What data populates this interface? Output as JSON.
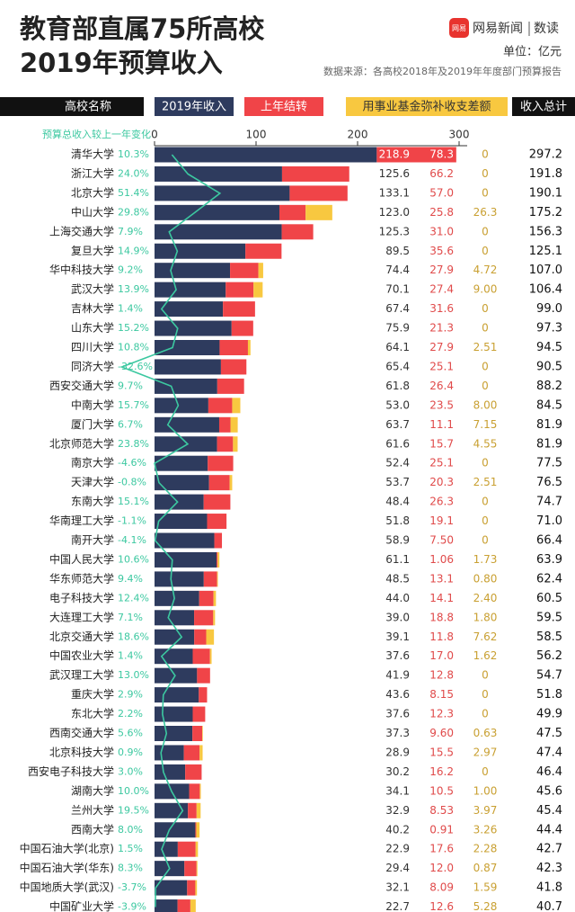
{
  "chart_data": {
    "type": "bar",
    "orientation": "horizontal",
    "stacked": true,
    "title": "教育部直属75所高校",
    "subtitle": "2019年预算收入",
    "logo_text": "网易",
    "brand": "网易新闻",
    "brand_sub": "数读",
    "unit": "单位：亿元",
    "source": "数据来源：各高校2018年及2019年年度部门预算报告",
    "category_label": "高校名称",
    "xlim": [
      0,
      300
    ],
    "xticks": [
      0,
      100,
      200,
      300
    ],
    "categories": [
      "清华大学",
      "浙江大学",
      "北京大学",
      "中山大学",
      "上海交通大学",
      "复旦大学",
      "华中科技大学",
      "武汉大学",
      "吉林大学",
      "山东大学",
      "四川大学",
      "同济大学",
      "西安交通大学",
      "中南大学",
      "厦门大学",
      "北京师范大学",
      "南京大学",
      "天津大学",
      "东南大学",
      "华南理工大学",
      "南开大学",
      "中国人民大学",
      "华东师范大学",
      "电子科技大学",
      "大连理工大学",
      "北京交通大学",
      "中国农业大学",
      "武汉理工大学",
      "重庆大学",
      "东北大学",
      "西南交通大学",
      "北京科技大学",
      "西安电子科技大学",
      "湖南大学",
      "兰州大学",
      "西南大学",
      "中国石油大学(北京)",
      "中国石油大学(华东)",
      "中国地质大学(武汉)",
      "中国矿业大学"
    ],
    "series": [
      {
        "name": "2019年收入",
        "color": "#2e3b5e",
        "text_color": "#333333",
        "values": [
          218.9,
          125.6,
          133.1,
          123.0,
          125.3,
          89.5,
          74.4,
          70.1,
          67.4,
          75.9,
          64.1,
          65.4,
          61.8,
          53.0,
          63.7,
          61.6,
          52.4,
          53.7,
          48.4,
          51.8,
          58.9,
          61.1,
          48.5,
          44.0,
          39.0,
          39.1,
          37.6,
          41.9,
          43.6,
          37.6,
          37.3,
          28.9,
          30.2,
          34.1,
          32.9,
          40.2,
          22.9,
          29.4,
          32.1,
          22.7
        ],
        "value_labels": [
          "218.9",
          "125.6",
          "133.1",
          "123.0",
          "125.3",
          "89.5",
          "74.4",
          "70.1",
          "67.4",
          "75.9",
          "64.1",
          "65.4",
          "61.8",
          "53.0",
          "63.7",
          "61.6",
          "52.4",
          "53.7",
          "48.4",
          "51.8",
          "58.9",
          "61.1",
          "48.5",
          "44.0",
          "39.0",
          "39.1",
          "37.6",
          "41.9",
          "43.6",
          "37.6",
          "37.3",
          "28.9",
          "30.2",
          "34.1",
          "32.9",
          "40.2",
          "22.9",
          "29.4",
          "32.1",
          "22.7"
        ]
      },
      {
        "name": "上年结转",
        "color": "#f04448",
        "text_color": "#e04a4a",
        "values": [
          78.3,
          66.2,
          57.0,
          25.8,
          31.0,
          35.6,
          27.9,
          27.4,
          31.6,
          21.3,
          27.9,
          25.1,
          26.4,
          23.5,
          11.1,
          15.7,
          25.1,
          20.3,
          26.3,
          19.1,
          7.5,
          1.06,
          13.1,
          14.1,
          18.8,
          11.8,
          17.0,
          12.8,
          8.15,
          12.3,
          9.6,
          15.5,
          16.2,
          10.5,
          8.53,
          0.91,
          17.6,
          12.0,
          8.09,
          12.6
        ],
        "value_labels": [
          "78.3",
          "66.2",
          "57.0",
          "25.8",
          "31.0",
          "35.6",
          "27.9",
          "27.4",
          "31.6",
          "21.3",
          "27.9",
          "25.1",
          "26.4",
          "23.5",
          "11.1",
          "15.7",
          "25.1",
          "20.3",
          "26.3",
          "19.1",
          "7.50",
          "1.06",
          "13.1",
          "14.1",
          "18.8",
          "11.8",
          "17.0",
          "12.8",
          "8.15",
          "12.3",
          "9.60",
          "15.5",
          "16.2",
          "10.5",
          "8.53",
          "0.91",
          "17.6",
          "12.0",
          "8.09",
          "12.6"
        ]
      },
      {
        "name": "用事业基金弥补收支差额",
        "color": "#f8c840",
        "text_color": "#c9a032",
        "values": [
          0,
          0,
          0,
          26.3,
          0,
          0,
          4.72,
          9.0,
          0,
          0,
          2.51,
          0,
          0,
          8.0,
          7.15,
          4.55,
          0,
          2.51,
          0,
          0,
          0,
          1.73,
          0.8,
          2.4,
          1.8,
          7.62,
          1.62,
          0,
          0,
          0,
          0.63,
          2.97,
          0,
          1.0,
          3.97,
          3.26,
          2.28,
          0.87,
          1.59,
          5.28
        ],
        "value_labels": [
          "0",
          "0",
          "0",
          "26.3",
          "0",
          "0",
          "4.72",
          "9.00",
          "0",
          "0",
          "2.51",
          "0",
          "0",
          "8.00",
          "7.15",
          "4.55",
          "0",
          "2.51",
          "0",
          "0",
          "0",
          "1.73",
          "0.80",
          "2.40",
          "1.80",
          "7.62",
          "1.62",
          "0",
          "0",
          "0",
          "0.63",
          "2.97",
          "0",
          "1.00",
          "3.97",
          "3.26",
          "2.28",
          "0.87",
          "1.59",
          "5.28"
        ]
      }
    ],
    "totals": {
      "name": "收入总计",
      "values": [
        297.2,
        191.8,
        190.1,
        175.2,
        156.3,
        125.1,
        107.0,
        106.4,
        99.0,
        97.3,
        94.5,
        90.5,
        88.2,
        84.5,
        81.9,
        81.9,
        77.5,
        76.5,
        74.7,
        71.0,
        66.4,
        63.9,
        62.4,
        60.5,
        59.5,
        58.5,
        56.2,
        54.7,
        51.8,
        49.9,
        47.5,
        47.4,
        46.4,
        45.6,
        45.4,
        44.4,
        42.7,
        42.3,
        41.8,
        40.7
      ],
      "value_labels": [
        "297.2",
        "191.8",
        "190.1",
        "175.2",
        "156.3",
        "125.1",
        "107.0",
        "106.4",
        "99.0",
        "97.3",
        "94.5",
        "90.5",
        "88.2",
        "84.5",
        "81.9",
        "81.9",
        "77.5",
        "76.5",
        "74.7",
        "71.0",
        "66.4",
        "63.9",
        "62.4",
        "60.5",
        "59.5",
        "58.5",
        "56.2",
        "54.7",
        "51.8",
        "49.9",
        "47.5",
        "47.4",
        "46.4",
        "45.6",
        "45.4",
        "44.4",
        "42.7",
        "42.3",
        "41.8",
        "40.7"
      ]
    },
    "change": {
      "name": "预算总收入较上一年变化",
      "color": "#3cc8a0",
      "values": [
        10.3,
        24.0,
        51.4,
        29.8,
        7.9,
        14.9,
        9.2,
        13.9,
        1.4,
        15.2,
        10.8,
        -32.6,
        9.7,
        15.7,
        6.7,
        23.8,
        -4.6,
        -0.8,
        15.1,
        -1.1,
        -4.1,
        10.6,
        9.4,
        12.4,
        7.1,
        18.6,
        1.4,
        13.0,
        2.9,
        2.2,
        5.6,
        0.9,
        3.0,
        10.0,
        19.5,
        8.0,
        1.5,
        8.3,
        -3.7,
        -3.9
      ],
      "value_labels": [
        "10.3%",
        "24.0%",
        "51.4%",
        "29.8%",
        "7.9%",
        "14.9%",
        "9.2%",
        "13.9%",
        "1.4%",
        "15.2%",
        "10.8%",
        "-32.6%",
        "9.7%",
        "15.7%",
        "6.7%",
        "23.8%",
        "-4.6%",
        "-0.8%",
        "15.1%",
        "-1.1%",
        "-4.1%",
        "10.6%",
        "9.4%",
        "12.4%",
        "7.1%",
        "18.6%",
        "1.4%",
        "13.0%",
        "2.9%",
        "2.2%",
        "5.6%",
        "0.9%",
        "3.0%",
        "10.0%",
        "19.5%",
        "8.0%",
        "1.5%",
        "8.3%",
        "-3.7%",
        "-3.9%"
      ]
    }
  }
}
